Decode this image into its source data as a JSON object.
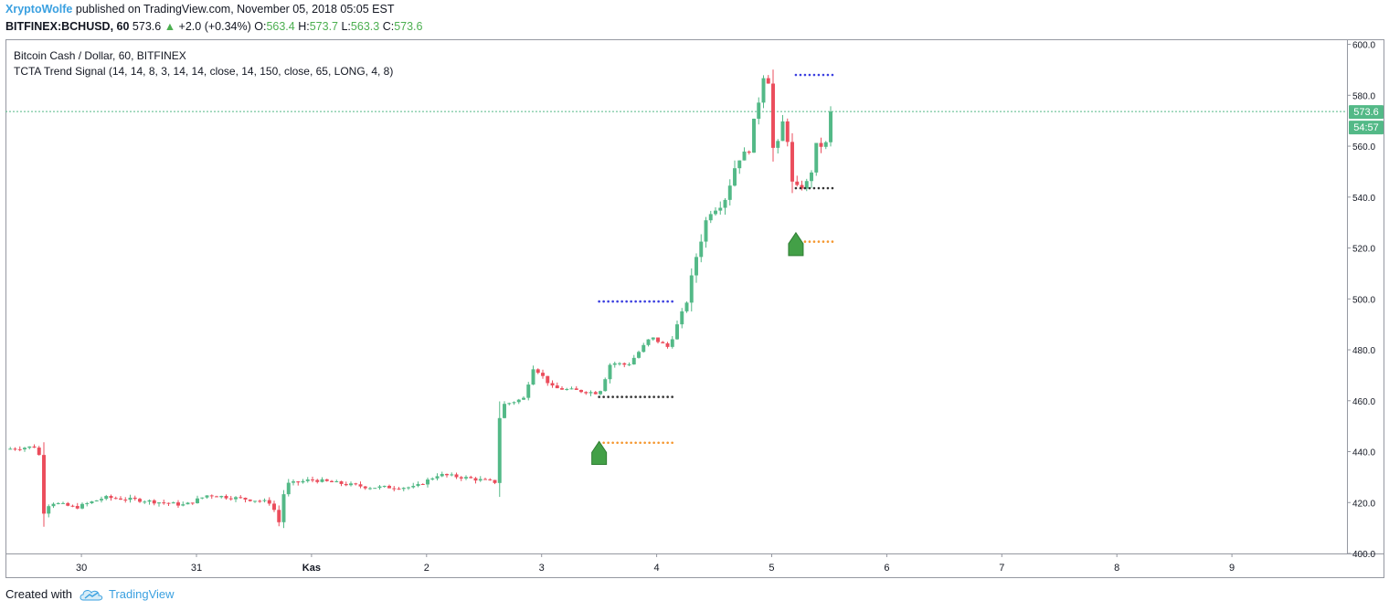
{
  "header": {
    "author": "XryptoWolfe",
    "published": "published on TradingView.com, November 05, 2018 05:05 EST",
    "symbol": "BITFINEX:BCHUSD, 60",
    "last": "573.6",
    "change": "+2.0 (+0.34%)",
    "o_label": "O:",
    "o_value": "563.4",
    "h_label": "H:",
    "h_value": "573.7",
    "l_label": "L:",
    "l_value": "563.3",
    "c_label": "C:",
    "c_value": "573.6"
  },
  "chart_legend": {
    "series_title": "Bitcoin Cash / Dollar, 60, BITFINEX",
    "indicator": "TCTA Trend Signal (14, 14, 8, 3, 14, 14, close, 14, 150, close, 65, LONG, 4, 8)"
  },
  "price_badge": "573.6",
  "countdown_badge": "54:57",
  "footer": {
    "created_with": "Created with",
    "brand": "TradingView"
  },
  "colors": {
    "up": "#53b987",
    "down": "#eb4d5c",
    "target": "#3b3fe0",
    "entry": "#333333",
    "stop": "#f5972e",
    "signal": "#43a047",
    "price_line": "#53b987"
  },
  "chart_data": {
    "type": "candlestick",
    "ylim": [
      400,
      602
    ],
    "y_ticks": [
      400,
      420,
      440,
      460,
      480,
      500,
      520,
      540,
      560,
      580,
      600
    ],
    "y_tick_labels": [
      "400.0",
      "420.0",
      "440.0",
      "460.0",
      "480.0",
      "500.0",
      "520.0",
      "540.0",
      "560.0",
      "580.0",
      "600.0"
    ],
    "x_domain_days": [
      29.34,
      41.0
    ],
    "x_ticks": [
      {
        "day": 30,
        "label": "30"
      },
      {
        "day": 31,
        "label": "31"
      },
      {
        "day": 32,
        "label": "Kas"
      },
      {
        "day": 33,
        "label": "2"
      },
      {
        "day": 34,
        "label": "3"
      },
      {
        "day": 35,
        "label": "4"
      },
      {
        "day": 36,
        "label": "5"
      },
      {
        "day": 37,
        "label": "6"
      },
      {
        "day": 38,
        "label": "7"
      },
      {
        "day": 39,
        "label": "8"
      },
      {
        "day": 40,
        "label": "9"
      }
    ],
    "last_price": 573.6,
    "levels": [
      {
        "name": "target",
        "color": "#3b3fe0",
        "day_from": 34.5,
        "day_to": 35.17,
        "value": 499
      },
      {
        "name": "entry",
        "color": "#333333",
        "day_from": 34.5,
        "day_to": 35.17,
        "value": 461.5
      },
      {
        "name": "stop",
        "color": "#f5972e",
        "day_from": 34.5,
        "day_to": 35.17,
        "value": 443.5
      },
      {
        "name": "target",
        "color": "#3b3fe0",
        "day_from": 36.21,
        "day_to": 36.55,
        "value": 588
      },
      {
        "name": "entry",
        "color": "#333333",
        "day_from": 36.21,
        "day_to": 36.55,
        "value": 543.5
      },
      {
        "name": "stop",
        "color": "#f5972e",
        "day_from": 36.21,
        "day_to": 36.55,
        "value": 522.5
      }
    ],
    "signals": [
      {
        "type": "long",
        "day": 34.5,
        "value_top": 444,
        "value_bottom": 435
      },
      {
        "type": "long",
        "day": 36.21,
        "value_top": 526,
        "value_bottom": 517
      }
    ],
    "anchors": [
      {
        "day": 29.34,
        "value": 441
      },
      {
        "day": 29.6,
        "value": 442
      },
      {
        "day": 29.63,
        "value": 440
      },
      {
        "day": 29.66,
        "value": 418
      },
      {
        "day": 29.75,
        "value": 420
      },
      {
        "day": 29.95,
        "value": 418
      },
      {
        "day": 30.2,
        "value": 422
      },
      {
        "day": 30.5,
        "value": 421
      },
      {
        "day": 30.9,
        "value": 419
      },
      {
        "day": 31.1,
        "value": 423
      },
      {
        "day": 31.5,
        "value": 421
      },
      {
        "day": 31.65,
        "value": 420
      },
      {
        "day": 31.72,
        "value": 412
      },
      {
        "day": 31.77,
        "value": 427
      },
      {
        "day": 32.0,
        "value": 429
      },
      {
        "day": 32.5,
        "value": 426
      },
      {
        "day": 32.9,
        "value": 426
      },
      {
        "day": 33.1,
        "value": 431
      },
      {
        "day": 33.3,
        "value": 430
      },
      {
        "day": 33.6,
        "value": 428
      },
      {
        "day": 33.64,
        "value": 458
      },
      {
        "day": 33.85,
        "value": 461
      },
      {
        "day": 33.92,
        "value": 474
      },
      {
        "day": 34.0,
        "value": 470
      },
      {
        "day": 34.1,
        "value": 465
      },
      {
        "day": 34.5,
        "value": 463
      },
      {
        "day": 34.6,
        "value": 475
      },
      {
        "day": 34.75,
        "value": 474
      },
      {
        "day": 34.95,
        "value": 485
      },
      {
        "day": 35.1,
        "value": 481
      },
      {
        "day": 35.2,
        "value": 492
      },
      {
        "day": 35.27,
        "value": 500
      },
      {
        "day": 35.35,
        "value": 518
      },
      {
        "day": 35.45,
        "value": 534
      },
      {
        "day": 35.55,
        "value": 537
      },
      {
        "day": 35.6,
        "value": 540
      },
      {
        "day": 35.7,
        "value": 555
      },
      {
        "day": 35.8,
        "value": 558
      },
      {
        "day": 35.87,
        "value": 574
      },
      {
        "day": 35.93,
        "value": 589
      },
      {
        "day": 35.97,
        "value": 586
      },
      {
        "day": 36.0,
        "value": 560
      },
      {
        "day": 36.04,
        "value": 556
      },
      {
        "day": 36.08,
        "value": 570
      },
      {
        "day": 36.13,
        "value": 567
      },
      {
        "day": 36.17,
        "value": 545
      },
      {
        "day": 36.2,
        "value": 543
      },
      {
        "day": 36.3,
        "value": 545
      },
      {
        "day": 36.35,
        "value": 551
      },
      {
        "day": 36.4,
        "value": 562
      },
      {
        "day": 36.45,
        "value": 559
      },
      {
        "day": 36.5,
        "value": 563.4
      },
      {
        "day": 36.55,
        "value": 573.6
      }
    ],
    "candle_step_days": 0.0417
  }
}
